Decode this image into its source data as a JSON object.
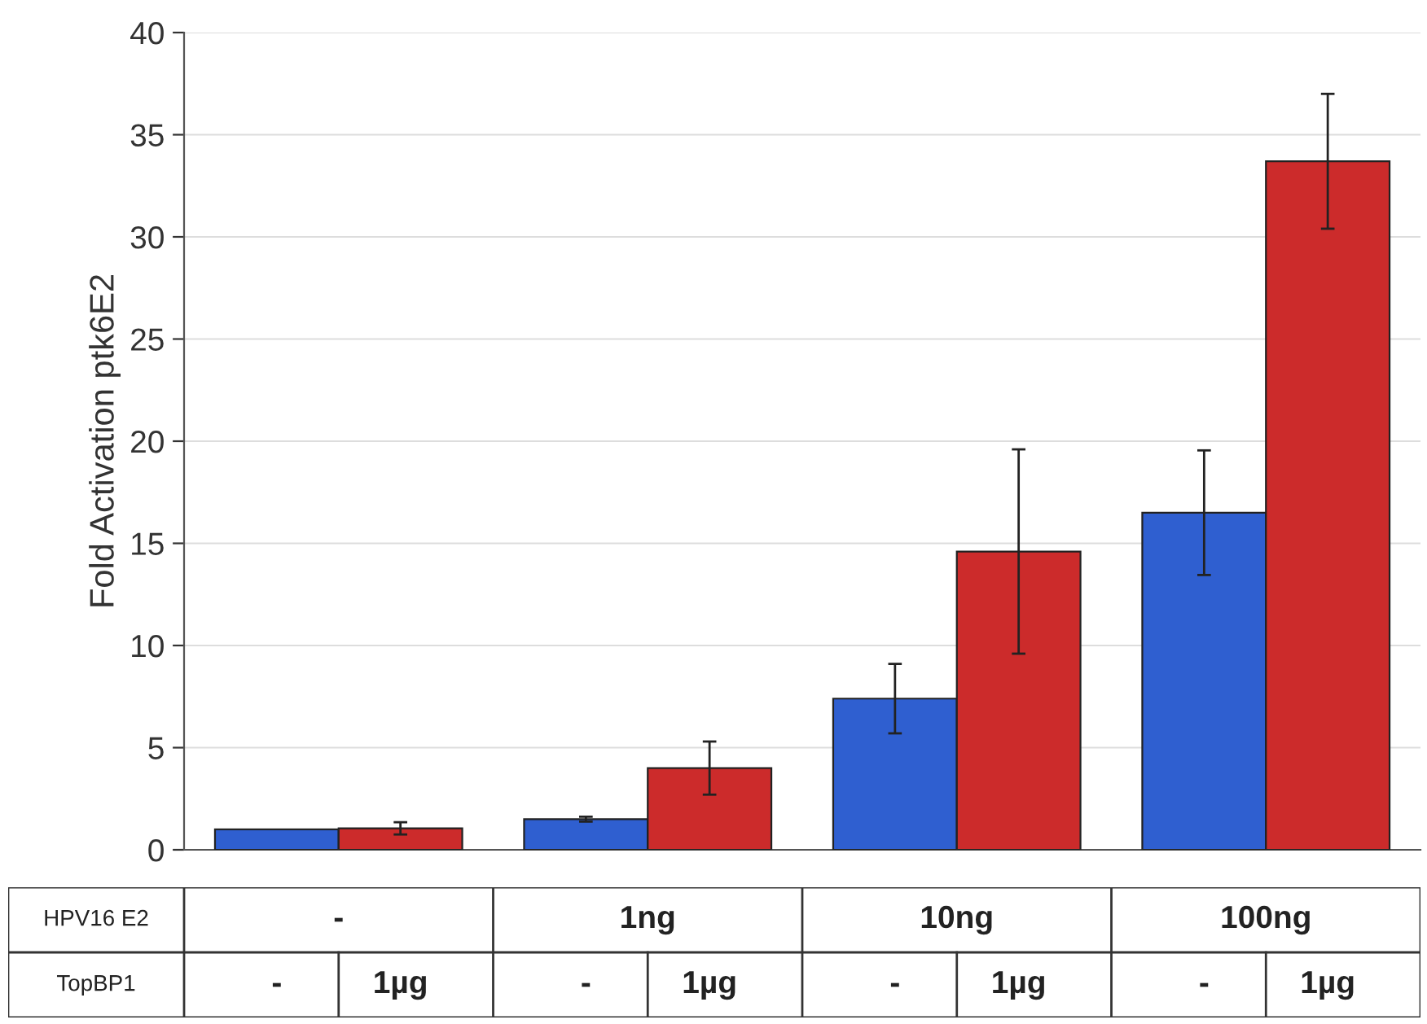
{
  "chart_data": {
    "type": "bar",
    "ylabel": "Fold Activation ptk6E2",
    "categories": [
      "-",
      "1ng",
      "10ng",
      "100ng"
    ],
    "series": [
      {
        "name": "-",
        "color": "#2f5fd0",
        "values": [
          1,
          1.5,
          7.4,
          16.5
        ],
        "errors": [
          null,
          0.12,
          1.7,
          3.05
        ]
      },
      {
        "name": "1µg",
        "color": "#cc2b2b",
        "values": [
          1.05,
          4.0,
          14.6,
          33.7
        ],
        "errors": [
          0.3,
          1.3,
          5,
          3.3
        ]
      }
    ],
    "annotations": [
      "HPV16 E2",
      "TopBP1"
    ],
    "ylim": [
      0,
      40
    ],
    "yticks": [
      0,
      5,
      10,
      15,
      20,
      25,
      30,
      35,
      40
    ],
    "grid": "y",
    "legend": false
  }
}
